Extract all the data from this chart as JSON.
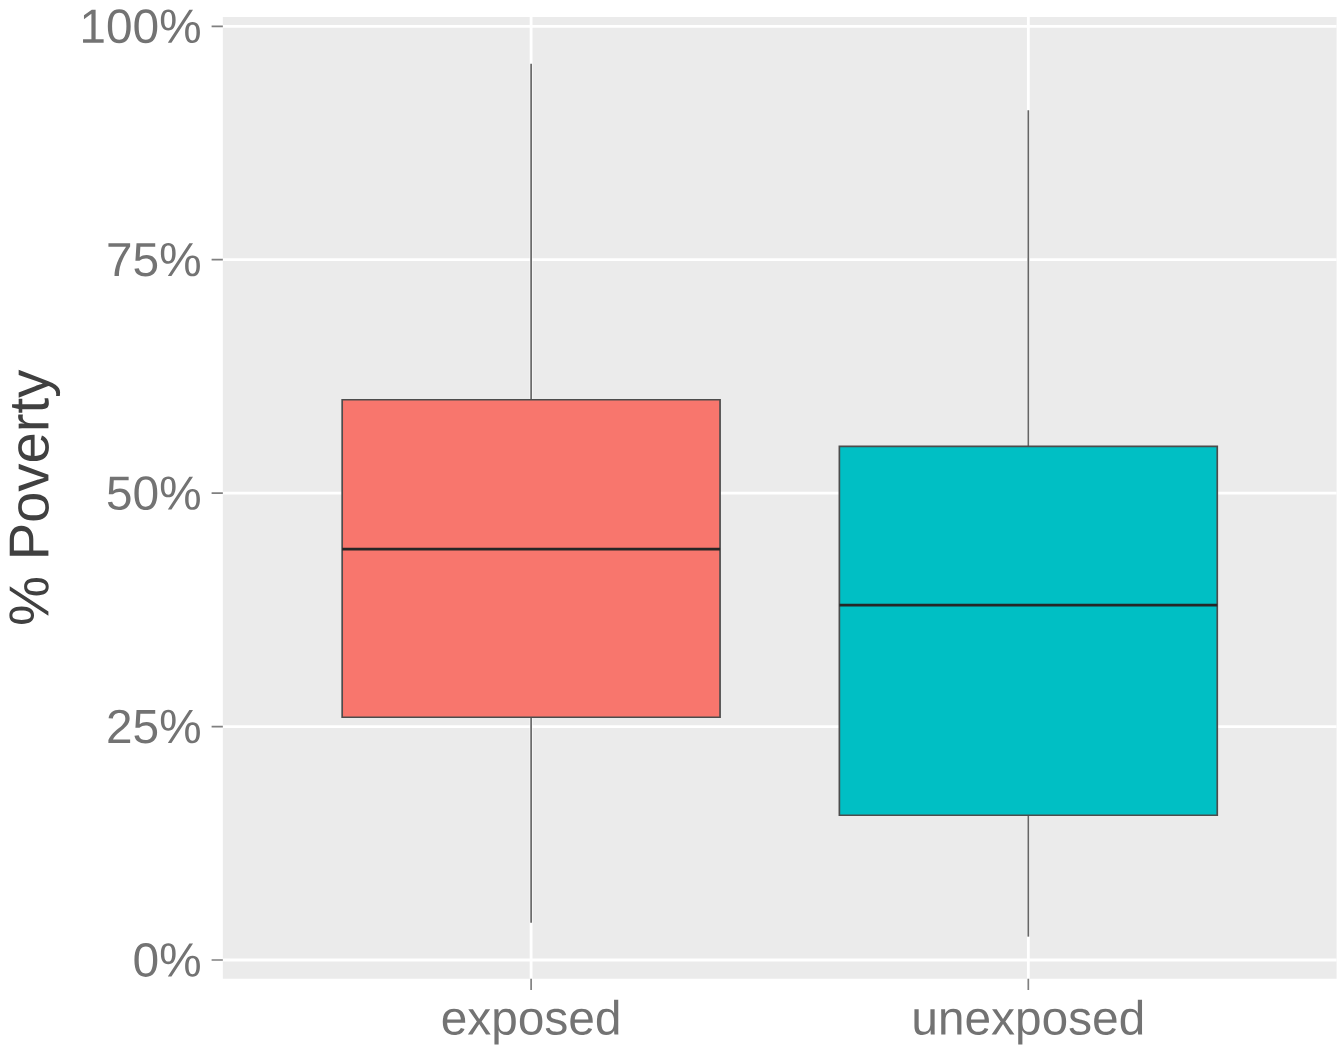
{
  "chart_data": {
    "type": "box",
    "ylabel": "% Poverty",
    "categories": [
      "exposed",
      "unexposed"
    ],
    "colors": [
      "#f8766d",
      "#00bfc4"
    ],
    "boxes": [
      {
        "low": 4,
        "q1": 26,
        "median": 44,
        "q3": 60,
        "high": 96
      },
      {
        "low": 2.5,
        "q1": 15.5,
        "median": 38,
        "q3": 55,
        "high": 91
      }
    ],
    "ylim": [
      -2,
      101
    ],
    "yticks": [
      {
        "value": 0,
        "label": "0%"
      },
      {
        "value": 25,
        "label": "25%"
      },
      {
        "value": 50,
        "label": "50%"
      },
      {
        "value": 75,
        "label": "75%"
      },
      {
        "value": 100,
        "label": "100%"
      }
    ],
    "grid": true
  }
}
